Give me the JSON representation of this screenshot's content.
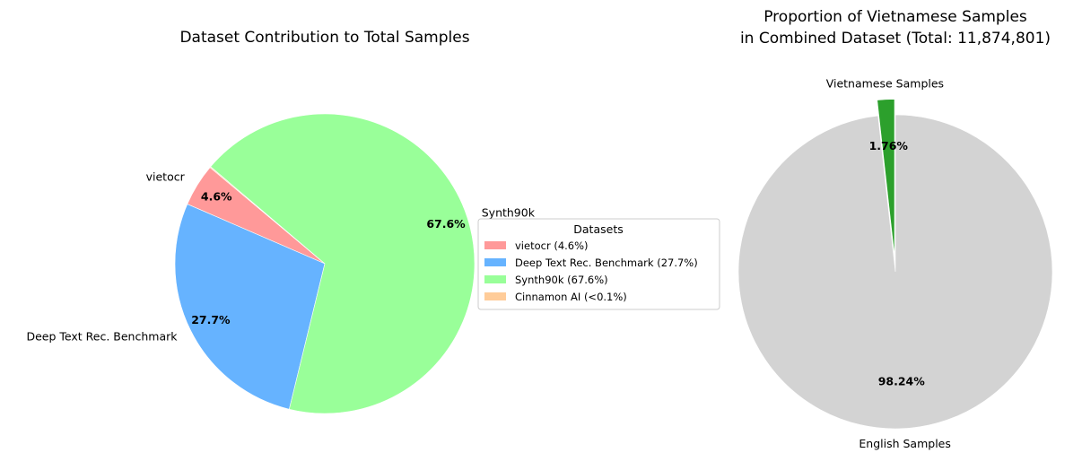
{
  "chart_data": [
    {
      "type": "pie",
      "title": "Dataset Contribution to Total Samples",
      "categories": [
        "vietocr",
        "Deep Text Rec. Benchmark",
        "Synth90k",
        "Cinnamon AI"
      ],
      "values": [
        4.6,
        27.7,
        67.6,
        0.1
      ],
      "labels": [
        "vietocr",
        "Deep Text Rec. Benchmark",
        "Synth90k",
        ""
      ],
      "pct_labels": [
        "4.6%",
        "27.7%",
        "67.6%",
        ""
      ],
      "colors": [
        "#ff9999",
        "#66b3ff",
        "#99ff99",
        "#ffcc99"
      ],
      "start_angle_deg": 140,
      "legend": {
        "title": "Datasets",
        "placement": "right",
        "entries": [
          "vietocr (4.6%)",
          "Deep Text Rec. Benchmark (27.7%)",
          "Synth90k (67.6%)",
          "Cinnamon AI (<0.1%)"
        ]
      }
    },
    {
      "type": "pie",
      "title_lines": [
        "Proportion of Vietnamese Samples",
        "in Combined Dataset (Total: 11,874,801)"
      ],
      "categories": [
        "Vietnamese Samples",
        "English Samples"
      ],
      "values": [
        1.76,
        98.24
      ],
      "labels": [
        "Vietnamese Samples",
        "English Samples"
      ],
      "pct_labels": [
        "1.76%",
        "98.24%"
      ],
      "colors": [
        "#2ca02c",
        "#d3d3d3"
      ],
      "explode": [
        0.1,
        0
      ],
      "start_angle_deg": 90
    }
  ]
}
